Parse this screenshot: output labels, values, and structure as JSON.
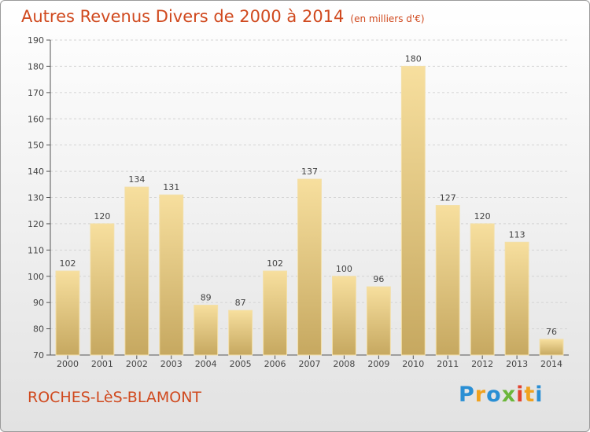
{
  "chart_data": {
    "type": "bar",
    "title": "Autres Revenus Divers de 2000 à 2014",
    "subtitle": "(en milliers d'€)",
    "categories": [
      "2000",
      "2001",
      "2002",
      "2003",
      "2004",
      "2005",
      "2006",
      "2007",
      "2008",
      "2009",
      "2010",
      "2011",
      "2012",
      "2013",
      "2014"
    ],
    "values": [
      102,
      120,
      134,
      131,
      89,
      87,
      102,
      137,
      100,
      96,
      180,
      127,
      120,
      113,
      76
    ],
    "ylim": [
      70,
      190
    ],
    "yticks": [
      70,
      80,
      90,
      100,
      110,
      120,
      130,
      140,
      150,
      160,
      170,
      180,
      190
    ],
    "grid": true,
    "data_labels": true,
    "bar_color": "#e8c77c"
  },
  "footer": {
    "place": "ROCHES-LèS-BLAMONT",
    "logo_letters": [
      "P",
      "r",
      "o",
      "x",
      "i",
      "t",
      "i"
    ],
    "logo_colors": [
      "#2a8fd4",
      "#f0a21f",
      "#2a8fd4",
      "#6bb63a",
      "#e2442f",
      "#f0a21f",
      "#2a8fd4"
    ]
  }
}
